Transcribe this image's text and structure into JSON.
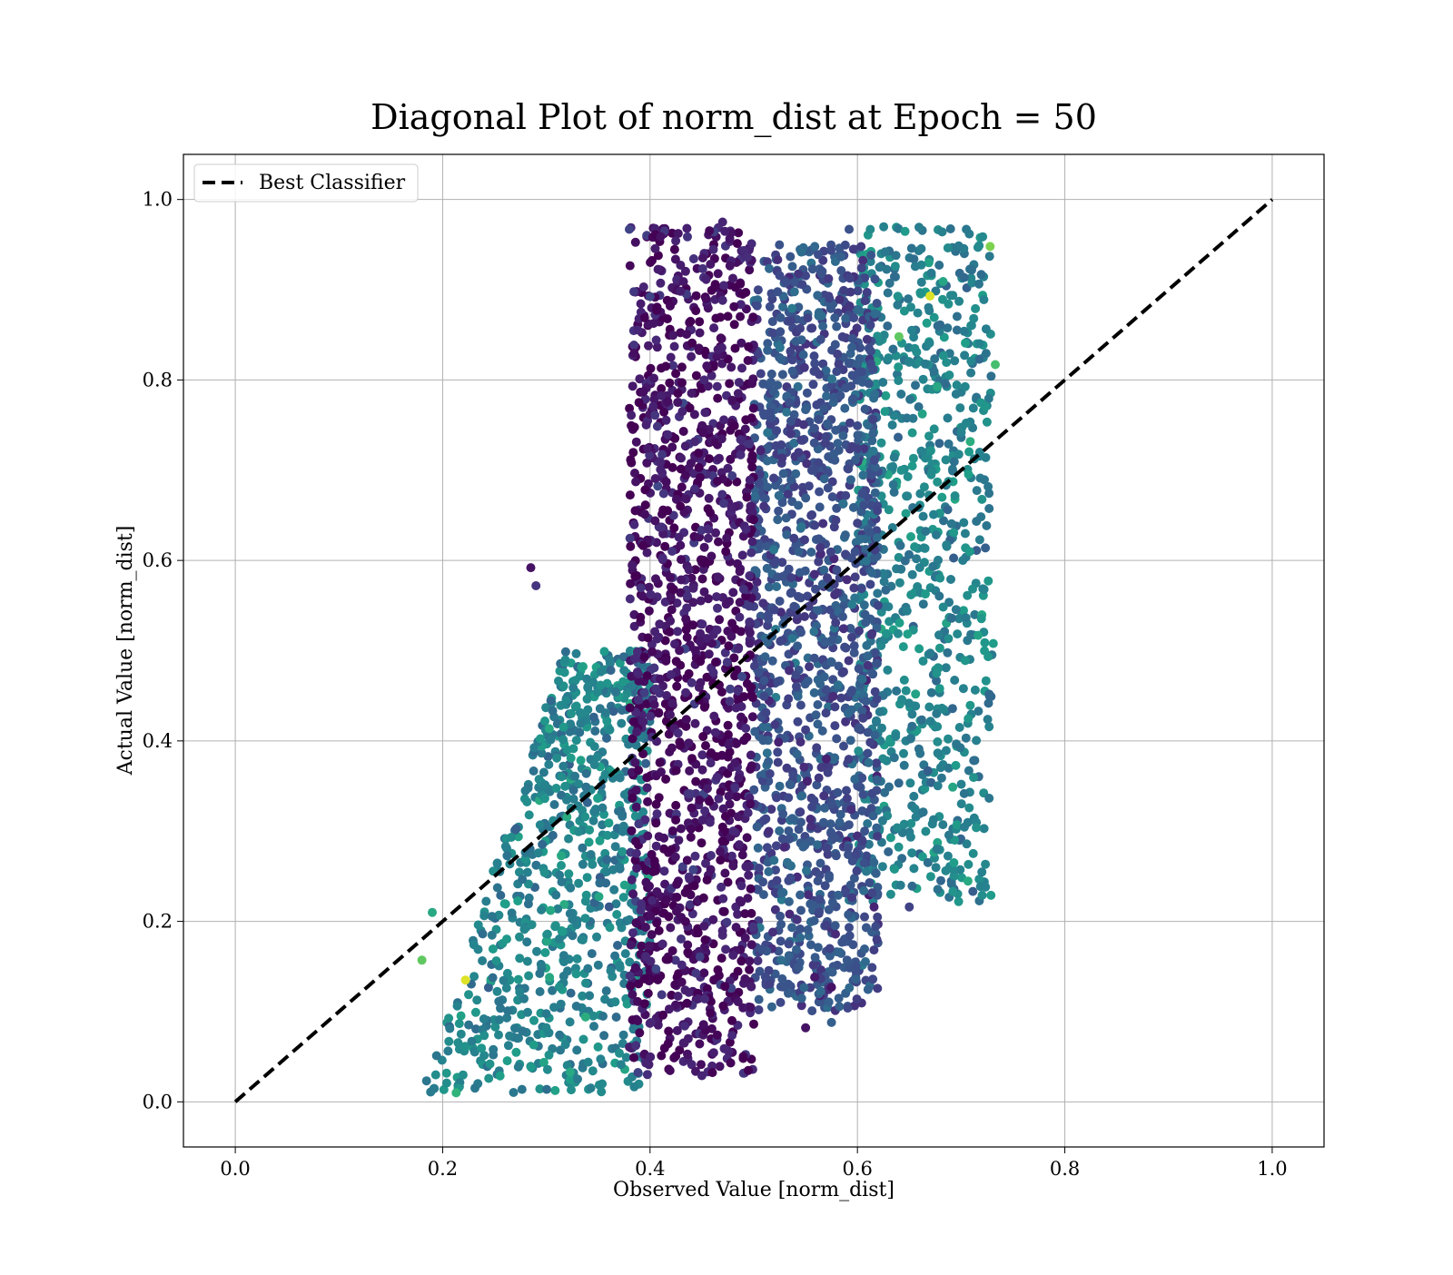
{
  "chart_data": {
    "type": "scatter",
    "title": "Diagonal Plot of norm_dist at Epoch = 50",
    "xlabel": "Observed Value [norm_dist]",
    "ylabel": "Actual Value [norm_dist]",
    "xlim": [
      -0.05,
      1.05
    ],
    "ylim": [
      -0.05,
      1.05
    ],
    "xticks": [
      "0.0",
      "0.2",
      "0.4",
      "0.6",
      "0.8",
      "1.0"
    ],
    "yticks": [
      "0.0",
      "0.2",
      "0.4",
      "0.6",
      "0.8",
      "1.0"
    ],
    "grid": true,
    "legend": {
      "location": "upper left",
      "entries": [
        "Best Classifier"
      ]
    },
    "colormap": "viridis",
    "series": [
      {
        "name": "Best Classifier",
        "type": "line",
        "style": "dashed",
        "color": "#000000",
        "x": [
          0.0,
          1.0
        ],
        "y": [
          0.0,
          1.0
        ]
      },
      {
        "type": "scatter",
        "colormap": "viridis",
        "clusters": [
          {
            "x_range": [
              0.38,
              0.5
            ],
            "y_range": [
              0.03,
              0.97
            ],
            "color_level": 0.05,
            "density": "high"
          },
          {
            "x_range": [
              0.5,
              0.62
            ],
            "y_range": [
              0.1,
              0.95
            ],
            "color_level": 0.25,
            "density": "high"
          },
          {
            "x_range": [
              0.6,
              0.73
            ],
            "y_range": [
              0.22,
              0.97
            ],
            "color_level": 0.45,
            "density": "medium"
          },
          {
            "x_range": [
              0.18,
              0.4
            ],
            "y_range": [
              0.01,
              0.5
            ],
            "color_level": 0.45,
            "density": "medium"
          }
        ],
        "sample_points": [
          {
            "x": 0.213,
            "y": 0.01,
            "c": 0.65
          },
          {
            "x": 0.18,
            "y": 0.157,
            "c": 0.75
          },
          {
            "x": 0.19,
            "y": 0.21,
            "c": 0.6
          },
          {
            "x": 0.285,
            "y": 0.592,
            "c": 0.05
          },
          {
            "x": 0.29,
            "y": 0.572,
            "c": 0.15
          },
          {
            "x": 0.38,
            "y": 0.967,
            "c": 0.2
          },
          {
            "x": 0.47,
            "y": 0.975,
            "c": 0.1
          },
          {
            "x": 0.592,
            "y": 0.967,
            "c": 0.25
          },
          {
            "x": 0.705,
            "y": 0.967,
            "c": 0.4
          },
          {
            "x": 0.728,
            "y": 0.948,
            "c": 0.8
          },
          {
            "x": 0.733,
            "y": 0.817,
            "c": 0.7
          },
          {
            "x": 0.731,
            "y": 0.508,
            "c": 0.55
          },
          {
            "x": 0.693,
            "y": 0.265,
            "c": 0.55
          },
          {
            "x": 0.65,
            "y": 0.216,
            "c": 0.2
          },
          {
            "x": 0.616,
            "y": 0.216,
            "c": 0.1
          },
          {
            "x": 0.575,
            "y": 0.127,
            "c": 0.05
          },
          {
            "x": 0.575,
            "y": 0.088,
            "c": 0.3
          },
          {
            "x": 0.55,
            "y": 0.082,
            "c": 0.05
          },
          {
            "x": 0.45,
            "y": 0.029,
            "c": 0.1
          },
          {
            "x": 0.323,
            "y": 0.033,
            "c": 0.6
          },
          {
            "x": 0.67,
            "y": 0.893,
            "c": 0.95
          },
          {
            "x": 0.64,
            "y": 0.848,
            "c": 0.75
          },
          {
            "x": 0.222,
            "y": 0.135,
            "c": 0.95
          }
        ]
      }
    ]
  }
}
